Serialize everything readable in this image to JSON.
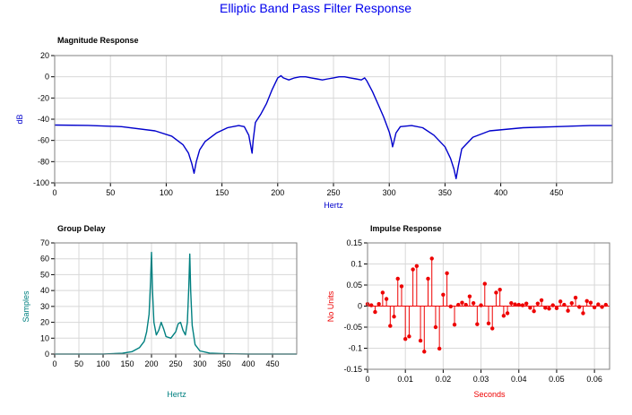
{
  "page_title": "Elliptic Band Pass Filter Response",
  "colors": {
    "title": "#0000ee",
    "magnitude": "#0000cc",
    "group_delay": "#008080",
    "impulse": "#ee0000",
    "grid": "#d8d8d8",
    "axis_text": "#000000"
  },
  "chart_data": [
    {
      "id": "magnitude",
      "type": "line",
      "title": "Magnitude Response",
      "xlabel": "Hertz",
      "ylabel": "dB",
      "xlim": [
        0,
        500
      ],
      "ylim": [
        -100,
        20
      ],
      "x_ticks": [
        0,
        50,
        100,
        150,
        200,
        250,
        300,
        350,
        400,
        450
      ],
      "y_ticks": [
        20,
        0,
        -20,
        -40,
        -60,
        -80,
        -100
      ],
      "grid": true,
      "series": [
        {
          "x": [
            0,
            30,
            60,
            90,
            105,
            115,
            120,
            123,
            125,
            127,
            130,
            135,
            145,
            155,
            165,
            170,
            174,
            176,
            177,
            178,
            180,
            185,
            190,
            195,
            200,
            203,
            205,
            210,
            215,
            220,
            225,
            230,
            235,
            240,
            245,
            250,
            255,
            260,
            265,
            270,
            275,
            278,
            280,
            285,
            290,
            295,
            300,
            302,
            303,
            304,
            306,
            310,
            320,
            330,
            340,
            350,
            355,
            358,
            360,
            362,
            365,
            375,
            390,
            420,
            450,
            480,
            500
          ],
          "y": [
            -45.5,
            -45.8,
            -47,
            -51,
            -56,
            -64,
            -72,
            -82,
            -91,
            -80,
            -69,
            -61,
            -53,
            -48,
            -46,
            -47,
            -55,
            -66,
            -72,
            -60,
            -43,
            -35,
            -25,
            -12,
            -1,
            1,
            -1,
            -3,
            -1,
            0,
            0,
            -1,
            -2,
            -3,
            -2,
            -1,
            0,
            0,
            -1,
            -2,
            -3,
            -1,
            -4,
            -14,
            -26,
            -38,
            -52,
            -60,
            -66,
            -62,
            -53,
            -47,
            -46,
            -48,
            -55,
            -66,
            -77,
            -87,
            -96,
            -84,
            -68,
            -57,
            -51,
            -48,
            -47,
            -46,
            -46
          ]
        }
      ]
    },
    {
      "id": "group_delay",
      "type": "line",
      "title": "Group Delay",
      "xlabel": "Hertz",
      "ylabel": "Samples",
      "xlim": [
        0,
        500
      ],
      "ylim": [
        0,
        70
      ],
      "x_ticks": [
        0,
        50,
        100,
        150,
        200,
        250,
        300,
        350,
        400,
        450
      ],
      "y_ticks": [
        70,
        60,
        50,
        40,
        30,
        20,
        10,
        0
      ],
      "grid": true,
      "series": [
        {
          "x": [
            0,
            100,
            140,
            160,
            175,
            185,
            190,
            195,
            198,
            200,
            202,
            205,
            210,
            215,
            220,
            225,
            230,
            240,
            250,
            255,
            260,
            265,
            270,
            274,
            277,
            279,
            281,
            284,
            290,
            300,
            320,
            350,
            400,
            500
          ],
          "y": [
            0,
            0,
            0.5,
            1.5,
            4,
            8,
            14,
            25,
            45,
            64,
            40,
            20,
            12,
            15,
            20,
            16,
            11,
            10,
            14,
            19,
            20,
            15,
            12,
            20,
            42,
            63,
            40,
            18,
            6,
            2,
            0.6,
            0.2,
            0,
            0
          ]
        }
      ]
    },
    {
      "id": "impulse",
      "type": "stem",
      "title": "Impulse Response",
      "xlabel": "Seconds",
      "ylabel": "No Units",
      "xlim": [
        0,
        0.064
      ],
      "ylim": [
        -0.15,
        0.15
      ],
      "x_ticks": [
        0,
        0.01,
        0.02,
        0.03,
        0.04,
        0.05,
        0.06
      ],
      "y_ticks": [
        0.15,
        0.1,
        0.05,
        0,
        -0.05,
        -0.1,
        -0.15
      ],
      "grid": true,
      "series": [
        {
          "x": [
            0,
            0.001,
            0.002,
            0.003,
            0.004,
            0.005,
            0.006,
            0.007,
            0.008,
            0.009,
            0.01,
            0.011,
            0.012,
            0.013,
            0.014,
            0.015,
            0.016,
            0.017,
            0.018,
            0.019,
            0.02,
            0.021,
            0.022,
            0.023,
            0.024,
            0.025,
            0.026,
            0.027,
            0.028,
            0.029,
            0.03,
            0.031,
            0.032,
            0.033,
            0.034,
            0.035,
            0.036,
            0.037,
            0.038,
            0.039,
            0.04,
            0.041,
            0.042,
            0.043,
            0.044,
            0.045,
            0.046,
            0.047,
            0.048,
            0.049,
            0.05,
            0.051,
            0.052,
            0.053,
            0.054,
            0.055,
            0.056,
            0.057,
            0.058,
            0.059,
            0.06,
            0.061,
            0.062,
            0.063
          ],
          "y": [
            0.005,
            0.002,
            -0.014,
            0.005,
            0.032,
            0.017,
            -0.047,
            -0.025,
            0.065,
            0.047,
            -0.078,
            -0.072,
            0.087,
            0.095,
            -0.082,
            -0.108,
            0.065,
            0.113,
            -0.05,
            -0.101,
            0.027,
            0.078,
            -0.001,
            -0.044,
            0.003,
            0.008,
            0.003,
            0.023,
            0.007,
            -0.043,
            0.002,
            0.053,
            -0.041,
            -0.053,
            0.032,
            0.039,
            -0.023,
            -0.017,
            0.007,
            0.004,
            0.003,
            0.002,
            0.006,
            -0.004,
            -0.012,
            0.006,
            0.014,
            -0.004,
            -0.006,
            0.002,
            -0.005,
            0.011,
            0.003,
            -0.011,
            0.007,
            0.02,
            -0.002,
            -0.017,
            0.012,
            0.008,
            -0.003,
            0.004,
            -0.002,
            0.003
          ]
        }
      ]
    }
  ]
}
